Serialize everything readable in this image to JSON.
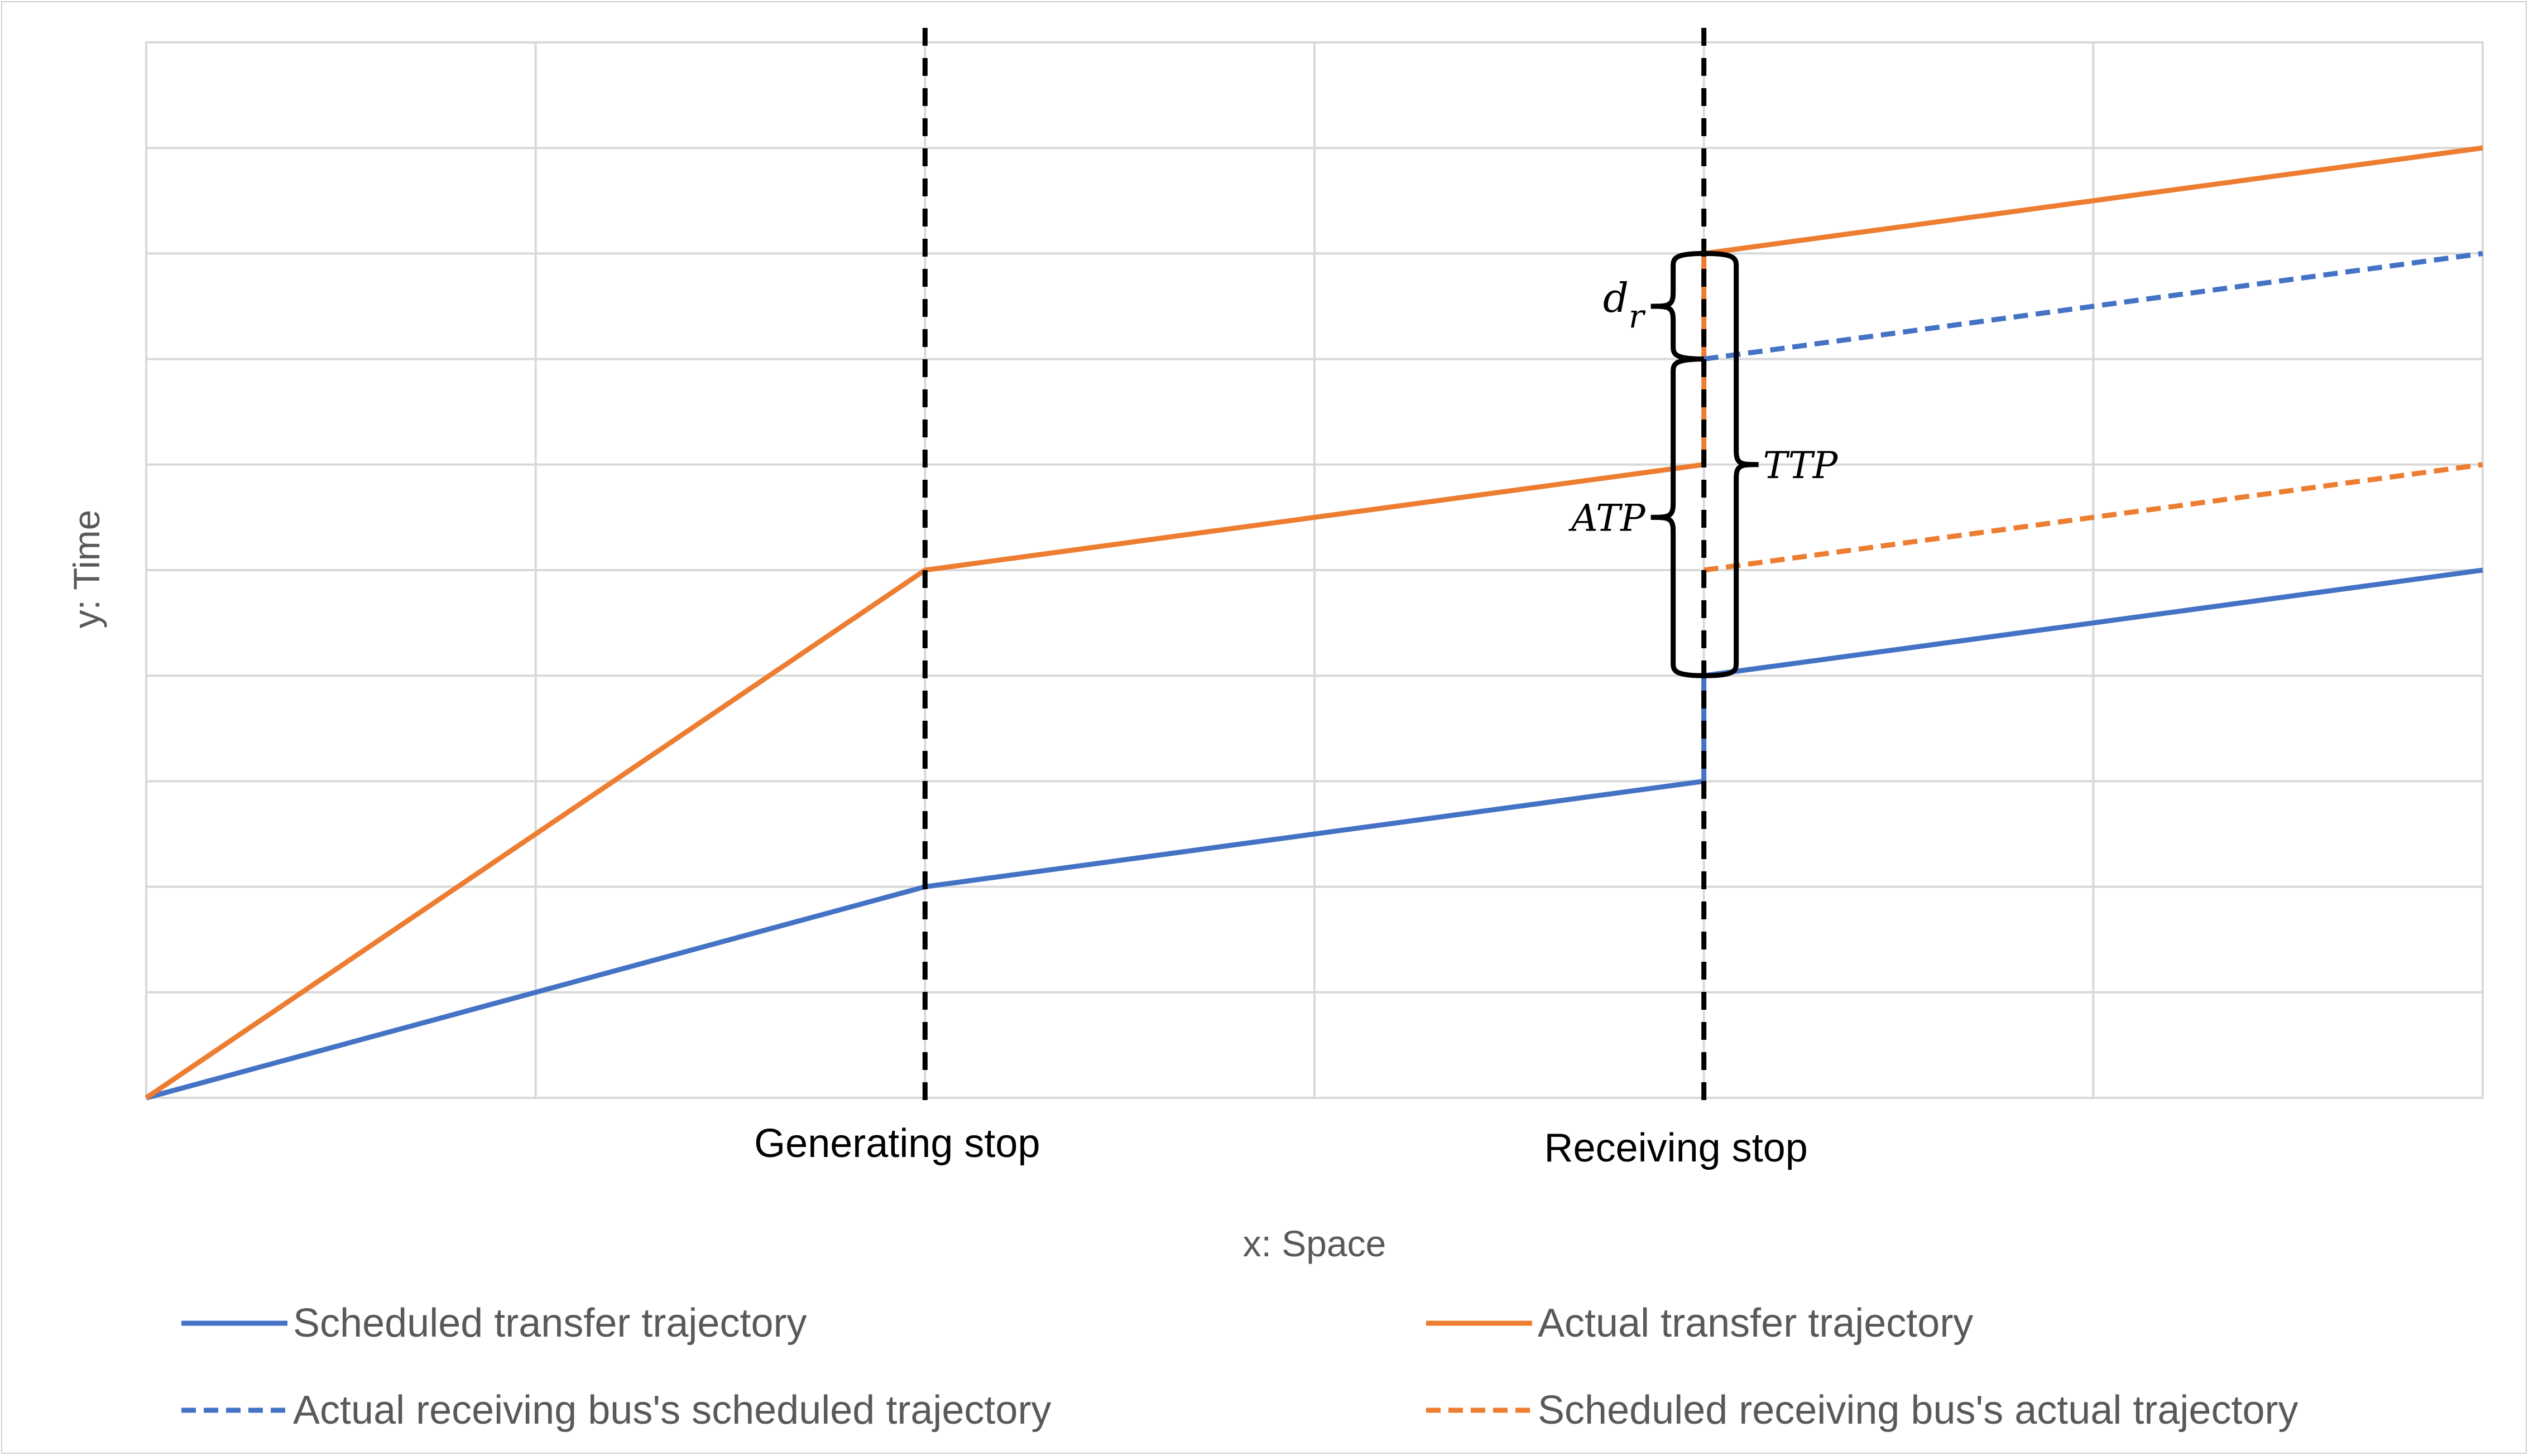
{
  "chart_data": {
    "type": "line",
    "title": "",
    "xlabel": "x: Space",
    "ylabel": "y: Time",
    "xlim": [
      0,
      6
    ],
    "ylim": [
      0,
      10
    ],
    "grid": true,
    "legend_position": "bottom",
    "stops": [
      {
        "x": 2,
        "label": "Generating stop"
      },
      {
        "x": 4,
        "label": "Receiving stop"
      }
    ],
    "series": [
      {
        "name": "Scheduled transfer trajectory",
        "color": "#4472C4",
        "style": "solid",
        "points": [
          [
            0,
            0
          ],
          [
            2,
            2
          ],
          [
            4,
            3
          ],
          [
            4,
            4
          ],
          [
            6,
            5
          ]
        ]
      },
      {
        "name": "Actual transfer trajectory",
        "color": "#ED7D31",
        "style": "solid",
        "points": [
          [
            0,
            0
          ],
          [
            2,
            5
          ],
          [
            4,
            6
          ],
          [
            4,
            8
          ],
          [
            6,
            9
          ]
        ]
      },
      {
        "name": "Actual receiving bus's scheduled trajectory",
        "color": "#4472C4",
        "style": "dashed",
        "points": [
          [
            4,
            7
          ],
          [
            6,
            8
          ]
        ]
      },
      {
        "name": "Scheduled receiving bus's actual trajectory",
        "color": "#ED7D31",
        "style": "dashed",
        "points": [
          [
            4,
            5
          ],
          [
            6,
            6
          ]
        ]
      }
    ],
    "annotations": [
      {
        "label": "d_r",
        "from": 7,
        "to": 8,
        "side": "left"
      },
      {
        "label": "ATP",
        "from": 4,
        "to": 7,
        "side": "left"
      },
      {
        "label": "TTP",
        "from": 4,
        "to": 8,
        "side": "right"
      }
    ]
  }
}
